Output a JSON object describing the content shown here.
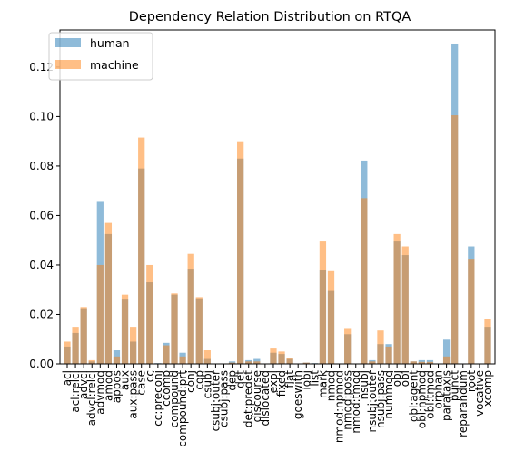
{
  "chart_data": {
    "type": "bar",
    "title": "Dependency Relation Distribution on RTQA",
    "xlabel": "",
    "ylabel": "",
    "ylim": [
      0,
      0.135
    ],
    "yticks": [
      "0.00",
      "0.02",
      "0.04",
      "0.06",
      "0.08",
      "0.10",
      "0.12"
    ],
    "grid": false,
    "legend_position": "top-left",
    "categories": [
      "acl",
      "acl:relcl",
      "advcl",
      "advcl:relcl",
      "advmod",
      "amod",
      "appos",
      "aux",
      "aux:pass",
      "case",
      "cc",
      "cc:preconj",
      "ccomp",
      "compound",
      "compound:prt",
      "conj",
      "cop",
      "csubj",
      "csubj:outer",
      "csubj:pass",
      "dep",
      "det",
      "det:predet",
      "discourse",
      "dislocated",
      "expl",
      "fixed",
      "flat",
      "goeswith",
      "iobj",
      "list",
      "mark",
      "nmod",
      "nmod:npmod",
      "nmod:poss",
      "nmod:tmod",
      "nsubj",
      "nsubj:outer",
      "nsubj:pass",
      "nummod",
      "obj",
      "obl",
      "obl:agent",
      "obl:npmod",
      "obl:tmod",
      "orphan",
      "parataxis",
      "punct",
      "reparandum",
      "root",
      "vocative",
      "xcomp"
    ],
    "series": [
      {
        "name": "human",
        "color": "#1f77b4",
        "values": [
          0.007,
          0.0125,
          0.0225,
          0.001,
          0.0655,
          0.0525,
          0.0055,
          0.026,
          0.009,
          0.079,
          0.033,
          0.0003,
          0.0085,
          0.028,
          0.0045,
          0.0385,
          0.0265,
          0.002,
          0.0001,
          0.0001,
          0.001,
          0.083,
          0.0015,
          0.002,
          0.0001,
          0.0045,
          0.004,
          0.002,
          0.0001,
          0.0005,
          0.0003,
          0.038,
          0.0295,
          0.0001,
          0.012,
          0.0001,
          0.0822,
          0.0015,
          0.008,
          0.008,
          0.0495,
          0.044,
          0.001,
          0.0015,
          0.0015,
          0.0001,
          0.0098,
          0.1295,
          0.0001,
          0.0475,
          0.0001,
          0.015
        ]
      },
      {
        "name": "machine",
        "color": "#ff7f0e",
        "values": [
          0.009,
          0.015,
          0.023,
          0.0015,
          0.04,
          0.057,
          0.003,
          0.028,
          0.015,
          0.0915,
          0.04,
          0.0002,
          0.0075,
          0.0285,
          0.003,
          0.0445,
          0.027,
          0.0055,
          0.0001,
          0.0001,
          0.0005,
          0.09,
          0.001,
          0.001,
          0.0001,
          0.0062,
          0.005,
          0.0025,
          0.0001,
          0.0005,
          0.0002,
          0.0495,
          0.0375,
          0.0001,
          0.0145,
          0.0001,
          0.067,
          0.001,
          0.0135,
          0.007,
          0.0525,
          0.0475,
          0.001,
          0.0008,
          0.0008,
          0.0001,
          0.003,
          0.1005,
          0.0001,
          0.0425,
          0.0001,
          0.0183
        ]
      }
    ]
  }
}
